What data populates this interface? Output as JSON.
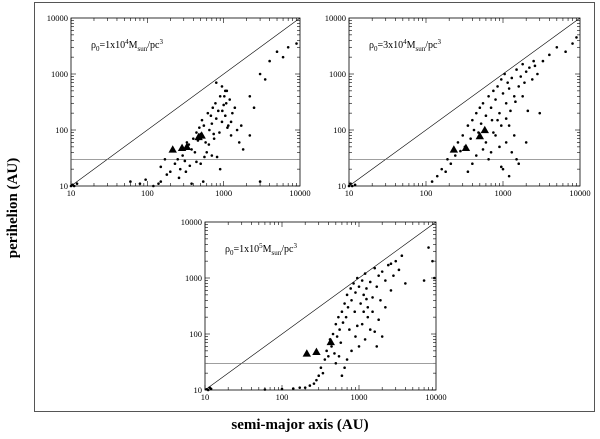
{
  "figure": {
    "ylabel": "perihelion (AU)",
    "xlabel": "semi-major axis (AU)"
  },
  "chart_data": [
    {
      "type": "scatter",
      "panel": "top-left",
      "annotation": {
        "base": "ρ",
        "sub0": "0",
        "mid": "=1x10",
        "sup": "4",
        "mid2": "M",
        "sub": "sun",
        "tail": "/pc",
        "sup2": "3"
      },
      "x_scale": "log",
      "y_scale": "log",
      "xlim": [
        10,
        10000
      ],
      "ylim": [
        10,
        10000
      ],
      "x_ticks": [
        "10",
        "100",
        "1000",
        "10000"
      ],
      "y_ticks": [
        "10",
        "100",
        "1000",
        "10000"
      ],
      "diagonal": true,
      "hline_y": 30,
      "triangles": [
        [
          215,
          45
        ],
        [
          330,
          50
        ],
        [
          470,
          75
        ],
        [
          515,
          80
        ],
        [
          285,
          48
        ]
      ],
      "points": [
        [
          10,
          10
        ],
        [
          11,
          10
        ],
        [
          12,
          11
        ],
        [
          10.5,
          10.5
        ],
        [
          60,
          12
        ],
        [
          80,
          11
        ],
        [
          95,
          13
        ],
        [
          120,
          10
        ],
        [
          140,
          11
        ],
        [
          180,
          16
        ],
        [
          200,
          18
        ],
        [
          230,
          25
        ],
        [
          250,
          30
        ],
        [
          270,
          20
        ],
        [
          290,
          35
        ],
        [
          310,
          28
        ],
        [
          330,
          60
        ],
        [
          350,
          55
        ],
        [
          380,
          45
        ],
        [
          400,
          70
        ],
        [
          420,
          40
        ],
        [
          440,
          90
        ],
        [
          460,
          65
        ],
        [
          480,
          110
        ],
        [
          500,
          85
        ],
        [
          520,
          150
        ],
        [
          550,
          120
        ],
        [
          580,
          60
        ],
        [
          600,
          40
        ],
        [
          620,
          200
        ],
        [
          650,
          100
        ],
        [
          680,
          180
        ],
        [
          700,
          130
        ],
        [
          720,
          250
        ],
        [
          750,
          70
        ],
        [
          780,
          300
        ],
        [
          800,
          160
        ],
        [
          850,
          220
        ],
        [
          880,
          90
        ],
        [
          900,
          400
        ],
        [
          950,
          140
        ],
        [
          1000,
          280
        ],
        [
          1050,
          180
        ],
        [
          1100,
          500
        ],
        [
          1150,
          120
        ],
        [
          1200,
          350
        ],
        [
          1250,
          80
        ],
        [
          1300,
          200
        ],
        [
          1400,
          250
        ],
        [
          1500,
          100
        ],
        [
          1600,
          60
        ],
        [
          1700,
          120
        ],
        [
          1800,
          45
        ],
        [
          900,
          20
        ],
        [
          700,
          35
        ],
        [
          500,
          25
        ],
        [
          150,
          22
        ],
        [
          170,
          30
        ],
        [
          260,
          14
        ],
        [
          320,
          18
        ],
        [
          360,
          23
        ],
        [
          440,
          27
        ],
        [
          560,
          33
        ],
        [
          640,
          55
        ],
        [
          740,
          85
        ],
        [
          820,
          33
        ],
        [
          960,
          220
        ],
        [
          1020,
          400
        ],
        [
          1120,
          110
        ],
        [
          1250,
          140
        ],
        [
          950,
          600
        ],
        [
          1050,
          500
        ],
        [
          800,
          700
        ],
        [
          1080,
          300
        ],
        [
          2200,
          400
        ],
        [
          2500,
          250
        ],
        [
          3000,
          1000
        ],
        [
          3500,
          800
        ],
        [
          4000,
          1700
        ],
        [
          5000,
          2500
        ],
        [
          6000,
          2000
        ],
        [
          7000,
          3000
        ],
        [
          9000,
          3500
        ],
        [
          3000,
          12
        ],
        [
          380,
          11
        ],
        [
          540,
          12
        ],
        [
          150,
          12
        ],
        [
          2200,
          80
        ]
      ]
    },
    {
      "type": "scatter",
      "panel": "top-right",
      "annotation": {
        "base": "ρ",
        "sub0": "0",
        "mid": "=3x10",
        "sup": "4",
        "mid2": "M",
        "sub": "sun",
        "tail": "/pc",
        "sup2": "3"
      },
      "x_scale": "log",
      "y_scale": "log",
      "xlim": [
        10,
        10000
      ],
      "ylim": [
        10,
        10000
      ],
      "x_ticks": [
        "10",
        "100",
        "1000",
        "10000"
      ],
      "y_ticks": [
        "10",
        "100",
        "1000",
        "10000"
      ],
      "diagonal": true,
      "hline_y": 30,
      "triangles": [
        [
          230,
          45
        ],
        [
          330,
          48
        ],
        [
          500,
          78
        ],
        [
          580,
          100
        ]
      ],
      "points": [
        [
          10,
          10
        ],
        [
          11,
          10
        ],
        [
          12,
          10.5
        ],
        [
          10.5,
          11
        ],
        [
          120,
          12
        ],
        [
          140,
          15
        ],
        [
          160,
          20
        ],
        [
          180,
          18
        ],
        [
          190,
          30
        ],
        [
          210,
          25
        ],
        [
          240,
          35
        ],
        [
          260,
          60
        ],
        [
          280,
          42
        ],
        [
          300,
          80
        ],
        [
          320,
          50
        ],
        [
          350,
          120
        ],
        [
          380,
          70
        ],
        [
          400,
          150
        ],
        [
          420,
          100
        ],
        [
          450,
          200
        ],
        [
          480,
          90
        ],
        [
          500,
          250
        ],
        [
          520,
          130
        ],
        [
          550,
          300
        ],
        [
          600,
          180
        ],
        [
          650,
          400
        ],
        [
          700,
          250
        ],
        [
          720,
          150
        ],
        [
          750,
          500
        ],
        [
          800,
          350
        ],
        [
          850,
          600
        ],
        [
          900,
          200
        ],
        [
          950,
          800
        ],
        [
          1000,
          450
        ],
        [
          1050,
          1000
        ],
        [
          1100,
          300
        ],
        [
          1150,
          700
        ],
        [
          1200,
          550
        ],
        [
          1300,
          850
        ],
        [
          1400,
          400
        ],
        [
          1500,
          1200
        ],
        [
          1600,
          600
        ],
        [
          1700,
          900
        ],
        [
          1800,
          1500
        ],
        [
          1900,
          700
        ],
        [
          2000,
          1100
        ],
        [
          2200,
          1300
        ],
        [
          2400,
          800
        ],
        [
          2600,
          1400
        ],
        [
          2800,
          1000
        ],
        [
          3000,
          200
        ],
        [
          1100,
          60
        ],
        [
          1200,
          120
        ],
        [
          1300,
          40
        ],
        [
          1400,
          80
        ],
        [
          1500,
          30
        ],
        [
          1600,
          25
        ],
        [
          700,
          40
        ],
        [
          800,
          80
        ],
        [
          900,
          50
        ],
        [
          950,
          120
        ],
        [
          600,
          60
        ],
        [
          650,
          30
        ],
        [
          550,
          45
        ],
        [
          400,
          25
        ],
        [
          350,
          18
        ],
        [
          450,
          35
        ],
        [
          1000,
          20
        ],
        [
          1100,
          160
        ],
        [
          1250,
          220
        ],
        [
          1450,
          320
        ],
        [
          3300,
          1700
        ],
        [
          4000,
          2200
        ],
        [
          5000,
          3000
        ],
        [
          6500,
          2500
        ],
        [
          8000,
          3500
        ],
        [
          9000,
          4500
        ],
        [
          2000,
          60
        ],
        [
          2500,
          1700
        ],
        [
          850,
          150
        ],
        [
          750,
          90
        ],
        [
          1800,
          400
        ],
        [
          2100,
          220
        ],
        [
          950,
          22
        ],
        [
          1200,
          15
        ]
      ]
    },
    {
      "type": "scatter",
      "panel": "bottom",
      "annotation": {
        "base": "ρ",
        "sub0": "0",
        "mid": "=1x10",
        "sup": "5",
        "mid2": "M",
        "sub": "sun",
        "tail": "/pc",
        "sup2": "3"
      },
      "x_scale": "log",
      "y_scale": "log",
      "xlim": [
        10,
        10000
      ],
      "ylim": [
        10,
        10000
      ],
      "x_ticks": [
        "10",
        "100",
        "1000",
        "10000"
      ],
      "y_ticks": [
        "10",
        "100",
        "1000",
        "10000"
      ],
      "diagonal": true,
      "hline_y": 30,
      "triangles": [
        [
          210,
          45
        ],
        [
          280,
          48
        ],
        [
          430,
          72
        ]
      ],
      "points": [
        [
          11,
          10
        ],
        [
          12,
          10.5
        ],
        [
          11.5,
          11
        ],
        [
          10.5,
          10.3
        ],
        [
          60,
          10.2
        ],
        [
          100,
          10.4
        ],
        [
          140,
          10.6
        ],
        [
          170,
          11
        ],
        [
          200,
          11
        ],
        [
          230,
          12
        ],
        [
          260,
          13
        ],
        [
          280,
          15
        ],
        [
          300,
          18
        ],
        [
          320,
          25
        ],
        [
          340,
          20
        ],
        [
          360,
          35
        ],
        [
          380,
          50
        ],
        [
          400,
          40
        ],
        [
          420,
          80
        ],
        [
          440,
          60
        ],
        [
          460,
          100
        ],
        [
          480,
          45
        ],
        [
          500,
          150
        ],
        [
          520,
          90
        ],
        [
          540,
          200
        ],
        [
          560,
          120
        ],
        [
          580,
          70
        ],
        [
          600,
          250
        ],
        [
          620,
          160
        ],
        [
          650,
          350
        ],
        [
          680,
          200
        ],
        [
          700,
          500
        ],
        [
          720,
          300
        ],
        [
          750,
          120
        ],
        [
          780,
          650
        ],
        [
          800,
          400
        ],
        [
          850,
          800
        ],
        [
          880,
          250
        ],
        [
          900,
          550
        ],
        [
          950,
          1000
        ],
        [
          1000,
          700
        ],
        [
          1050,
          350
        ],
        [
          1100,
          900
        ],
        [
          1150,
          500
        ],
        [
          1200,
          1200
        ],
        [
          1250,
          650
        ],
        [
          1300,
          300
        ],
        [
          1400,
          850
        ],
        [
          1500,
          450
        ],
        [
          1600,
          1500
        ],
        [
          1700,
          700
        ],
        [
          1800,
          1100
        ],
        [
          1900,
          400
        ],
        [
          2000,
          1300
        ],
        [
          2200,
          900
        ],
        [
          2400,
          1700
        ],
        [
          2600,
          600
        ],
        [
          2800,
          1100
        ],
        [
          3000,
          2000
        ],
        [
          3300,
          1400
        ],
        [
          3600,
          2500
        ],
        [
          4000,
          800
        ],
        [
          1100,
          150
        ],
        [
          1200,
          80
        ],
        [
          1300,
          200
        ],
        [
          1400,
          120
        ],
        [
          1000,
          60
        ],
        [
          900,
          90
        ],
        [
          800,
          50
        ],
        [
          700,
          35
        ],
        [
          650,
          25
        ],
        [
          600,
          18
        ],
        [
          550,
          40
        ],
        [
          500,
          30
        ],
        [
          1500,
          250
        ],
        [
          1600,
          110
        ],
        [
          1700,
          60
        ],
        [
          1800,
          180
        ],
        [
          2000,
          90
        ],
        [
          2200,
          300
        ],
        [
          7000,
          900
        ],
        [
          8000,
          3500
        ],
        [
          9000,
          2000
        ],
        [
          9500,
          1000
        ],
        [
          950,
          140
        ],
        [
          1150,
          250
        ],
        [
          1250,
          420
        ],
        [
          2600,
          1800
        ]
      ]
    }
  ]
}
